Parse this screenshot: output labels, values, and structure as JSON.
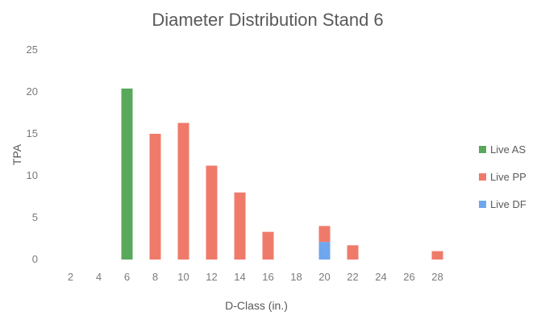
{
  "chart_data": {
    "type": "bar",
    "stacked": true,
    "title": "Diameter Distribution Stand 6",
    "xlabel": "D-Class (in.)",
    "ylabel": "TPA",
    "ylim": [
      0,
      25
    ],
    "yticks": [
      0,
      5,
      10,
      15,
      20,
      25
    ],
    "categories": [
      "2",
      "4",
      "6",
      "8",
      "10",
      "12",
      "14",
      "16",
      "18",
      "20",
      "22",
      "24",
      "26",
      "28"
    ],
    "series": [
      {
        "name": "Live AS",
        "color": "#59a85c",
        "values": [
          0,
          0,
          20.4,
          0,
          0,
          0,
          0,
          0,
          0,
          0,
          0,
          0,
          0,
          0
        ]
      },
      {
        "name": "Live PP",
        "color": "#f07a6a",
        "values": [
          0,
          0,
          0,
          15.0,
          16.3,
          11.2,
          8.0,
          3.3,
          0,
          1.9,
          1.7,
          0,
          0,
          1.0
        ]
      },
      {
        "name": "Live DF",
        "color": "#6fa7ee",
        "values": [
          0,
          0,
          0,
          0,
          0,
          0,
          0,
          0,
          0,
          2.1,
          0,
          0,
          0,
          0
        ]
      }
    ],
    "stack_order": [
      "Live AS",
      "Live DF",
      "Live PP"
    ],
    "grid": false,
    "legend": "right"
  }
}
